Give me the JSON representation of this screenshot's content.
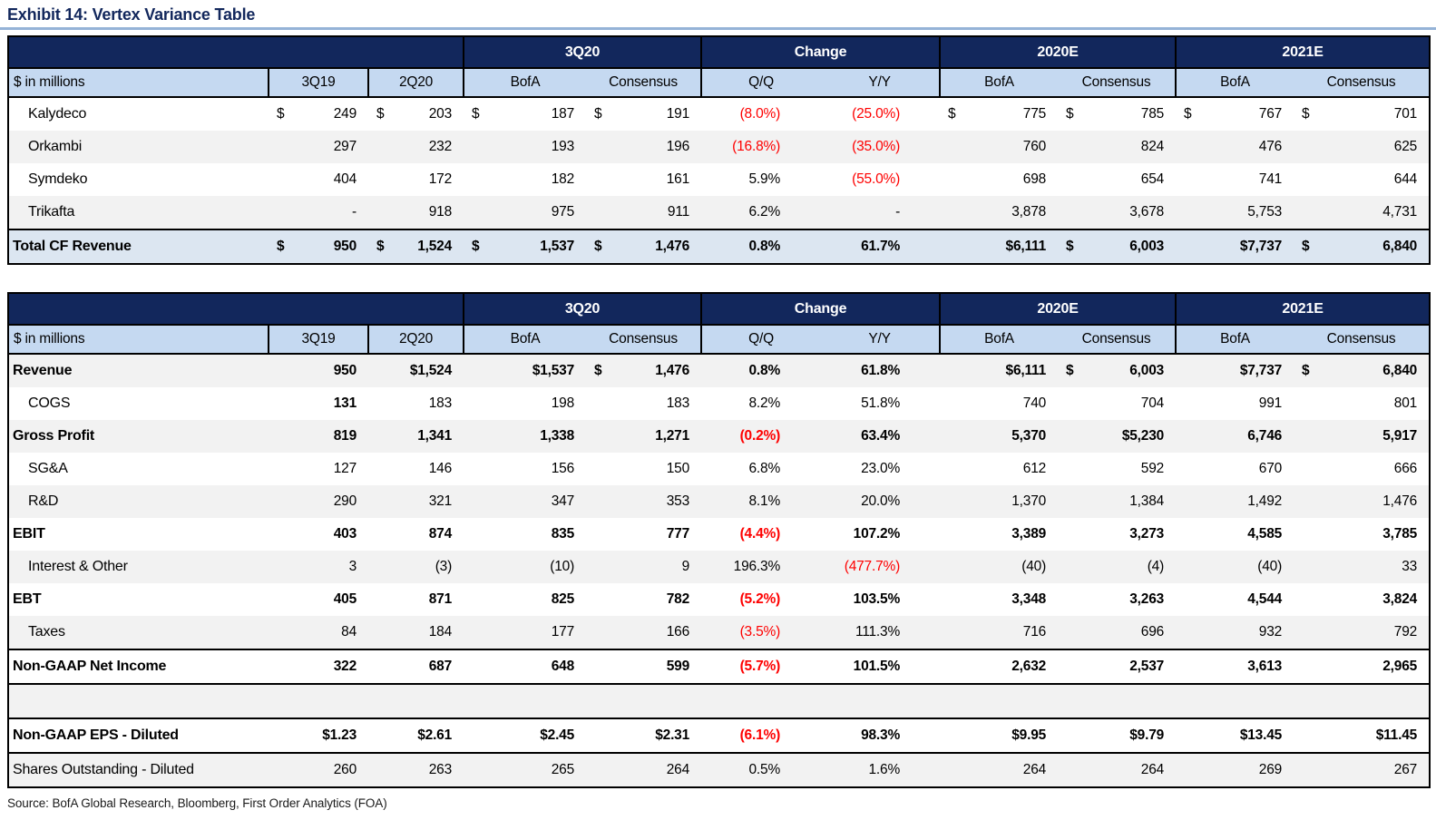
{
  "page": {
    "title": "Exhibit 14: Vertex Variance Table",
    "source": "Source: BofA Global Research, Bloomberg, First Order Analytics (FOA)"
  },
  "colors": {
    "navy_header": "#12275c",
    "subheader_blue": "#c5d9f1",
    "total_row_blue": "#dce6f1",
    "stripe_gray": "#f2f2f2",
    "negative_red": "#fe0000",
    "title_rule_blue": "#95b3d7"
  },
  "columns": {
    "groups": [
      "3Q20",
      "Change",
      "2020E",
      "2021E"
    ],
    "sub": [
      "$ in millions",
      "3Q19",
      "2Q20",
      "BofA",
      "Consensus",
      "Q/Q",
      "Y/Y",
      "BofA",
      "Consensus",
      "BofA",
      "Consensus"
    ]
  },
  "table1": {
    "rows": [
      {
        "label": "Kalydeco",
        "indent": true,
        "cells": [
          {
            "d": "$",
            "v": "249"
          },
          {
            "d": "$",
            "v": "203"
          },
          {
            "d": "$",
            "v": "187"
          },
          {
            "d": "$",
            "v": "191"
          },
          {
            "v": "(8.0%)",
            "red": true
          },
          {
            "v": "(25.0%)",
            "red": true
          },
          {
            "d": "$",
            "v": "775"
          },
          {
            "d": "$",
            "v": "785"
          },
          {
            "d": "$",
            "v": "767"
          },
          {
            "d": "$",
            "v": "701"
          }
        ]
      },
      {
        "label": "Orkambi",
        "indent": true,
        "cells": [
          {
            "v": "297"
          },
          {
            "v": "232"
          },
          {
            "v": "193"
          },
          {
            "v": "196"
          },
          {
            "v": "(16.8%)",
            "red": true
          },
          {
            "v": "(35.0%)",
            "red": true
          },
          {
            "v": "760"
          },
          {
            "v": "824"
          },
          {
            "v": "476"
          },
          {
            "v": "625"
          }
        ]
      },
      {
        "label": "Symdeko",
        "indent": true,
        "cells": [
          {
            "v": "404"
          },
          {
            "v": "172"
          },
          {
            "v": "182"
          },
          {
            "v": "161"
          },
          {
            "v": "5.9%"
          },
          {
            "v": "(55.0%)",
            "red": true
          },
          {
            "v": "698"
          },
          {
            "v": "654"
          },
          {
            "v": "741"
          },
          {
            "v": "644"
          }
        ]
      },
      {
        "label": "Trikafta",
        "indent": true,
        "cells": [
          {
            "v": "-"
          },
          {
            "v": "918"
          },
          {
            "v": "975"
          },
          {
            "v": "911"
          },
          {
            "v": "6.2%"
          },
          {
            "v": "-"
          },
          {
            "v": "3,878"
          },
          {
            "v": "3,678"
          },
          {
            "v": "5,753"
          },
          {
            "v": "4,731"
          }
        ]
      },
      {
        "label": "Total CF Revenue",
        "bold": true,
        "total": true,
        "rule_above": true,
        "cells": [
          {
            "d": "$",
            "v": "950"
          },
          {
            "d": "$",
            "v": "1,524"
          },
          {
            "d": "$",
            "v": "1,537"
          },
          {
            "d": "$",
            "v": "1,476"
          },
          {
            "v": "0.8%"
          },
          {
            "v": "61.7%"
          },
          {
            "v": "$6,111"
          },
          {
            "d": "$",
            "v": "6,003"
          },
          {
            "v": "$7,737"
          },
          {
            "d": "$",
            "v": "6,840"
          }
        ]
      }
    ]
  },
  "table2": {
    "rows": [
      {
        "label": "Revenue",
        "bold": true,
        "cells": [
          {
            "v": "950"
          },
          {
            "v": "$1,524"
          },
          {
            "v": "$1,537"
          },
          {
            "d": "$",
            "v": "1,476"
          },
          {
            "v": "0.8%"
          },
          {
            "v": "61.8%"
          },
          {
            "v": "$6,111"
          },
          {
            "d": "$",
            "v": "6,003"
          },
          {
            "v": "$7,737"
          },
          {
            "d": "$",
            "v": "6,840"
          }
        ]
      },
      {
        "label": "COGS",
        "indent": true,
        "cells": [
          {
            "v": "131",
            "b": true
          },
          {
            "v": "183"
          },
          {
            "v": "198"
          },
          {
            "v": "183"
          },
          {
            "v": "8.2%"
          },
          {
            "v": "51.8%"
          },
          {
            "v": "740"
          },
          {
            "v": "704"
          },
          {
            "v": "991"
          },
          {
            "v": "801"
          }
        ]
      },
      {
        "label": "Gross Profit",
        "bold": true,
        "cells": [
          {
            "v": "819"
          },
          {
            "v": "1,341"
          },
          {
            "v": "1,338"
          },
          {
            "v": "1,271"
          },
          {
            "v": "(0.2%)",
            "red": true
          },
          {
            "v": "63.4%"
          },
          {
            "v": "5,370"
          },
          {
            "v": "$5,230"
          },
          {
            "v": "6,746"
          },
          {
            "v": "5,917"
          }
        ]
      },
      {
        "label": "SG&A",
        "indent": true,
        "cells": [
          {
            "v": "127"
          },
          {
            "v": "146"
          },
          {
            "v": "156"
          },
          {
            "v": "150"
          },
          {
            "v": "6.8%"
          },
          {
            "v": "23.0%"
          },
          {
            "v": "612"
          },
          {
            "v": "592"
          },
          {
            "v": "670"
          },
          {
            "v": "666"
          }
        ]
      },
      {
        "label": "R&D",
        "indent": true,
        "cells": [
          {
            "v": "290"
          },
          {
            "v": "321"
          },
          {
            "v": "347"
          },
          {
            "v": "353"
          },
          {
            "v": "8.1%"
          },
          {
            "v": "20.0%"
          },
          {
            "v": "1,370"
          },
          {
            "v": "1,384"
          },
          {
            "v": "1,492"
          },
          {
            "v": "1,476"
          }
        ]
      },
      {
        "label": "EBIT",
        "bold": true,
        "cells": [
          {
            "v": "403"
          },
          {
            "v": "874"
          },
          {
            "v": "835"
          },
          {
            "v": "777"
          },
          {
            "v": "(4.4%)",
            "red": true
          },
          {
            "v": "107.2%"
          },
          {
            "v": "3,389"
          },
          {
            "v": "3,273"
          },
          {
            "v": "4,585"
          },
          {
            "v": "3,785"
          }
        ]
      },
      {
        "label": "Interest & Other",
        "indent": true,
        "cells": [
          {
            "v": "3"
          },
          {
            "v": "(3)"
          },
          {
            "v": "(10)"
          },
          {
            "v": "9"
          },
          {
            "v": "196.3%"
          },
          {
            "v": "(477.7%)",
            "red": true
          },
          {
            "v": "(40)"
          },
          {
            "v": "(4)"
          },
          {
            "v": "(40)"
          },
          {
            "v": "33"
          }
        ]
      },
      {
        "label": "EBT",
        "bold": true,
        "cells": [
          {
            "v": "405"
          },
          {
            "v": "871"
          },
          {
            "v": "825"
          },
          {
            "v": "782"
          },
          {
            "v": "(5.2%)",
            "red": true
          },
          {
            "v": "103.5%"
          },
          {
            "v": "3,348"
          },
          {
            "v": "3,263"
          },
          {
            "v": "4,544"
          },
          {
            "v": "3,824"
          }
        ]
      },
      {
        "label": "Taxes",
        "indent": true,
        "cells": [
          {
            "v": "84"
          },
          {
            "v": "184"
          },
          {
            "v": "177"
          },
          {
            "v": "166"
          },
          {
            "v": "(3.5%)",
            "red": true
          },
          {
            "v": "111.3%"
          },
          {
            "v": "716"
          },
          {
            "v": "696"
          },
          {
            "v": "932"
          },
          {
            "v": "792"
          }
        ]
      },
      {
        "label": "Non-GAAP Net Income",
        "bold": true,
        "rule_above": true,
        "rule_below": true,
        "cells": [
          {
            "v": "322"
          },
          {
            "v": "687"
          },
          {
            "v": "648"
          },
          {
            "v": "599"
          },
          {
            "v": "(5.7%)",
            "red": true
          },
          {
            "v": "101.5%"
          },
          {
            "v": "2,632"
          },
          {
            "v": "2,537"
          },
          {
            "v": "3,613"
          },
          {
            "v": "2,965"
          }
        ]
      },
      {
        "label": "",
        "blank": true,
        "cells": []
      },
      {
        "label": "Non-GAAP EPS - Diluted",
        "bold": true,
        "rule_above": true,
        "rule_below": true,
        "cells": [
          {
            "v": "$1.23"
          },
          {
            "v": "$2.61"
          },
          {
            "v": "$2.45"
          },
          {
            "v": "$2.31"
          },
          {
            "v": "(6.1%)",
            "red": true
          },
          {
            "v": "98.3%"
          },
          {
            "v": "$9.95"
          },
          {
            "v": "$9.79"
          },
          {
            "v": "$13.45"
          },
          {
            "v": "$11.45"
          }
        ]
      },
      {
        "label": "Shares Outstanding - Diluted",
        "cells": [
          {
            "v": "260"
          },
          {
            "v": "263"
          },
          {
            "v": "265"
          },
          {
            "v": "264"
          },
          {
            "v": "0.5%"
          },
          {
            "v": "1.6%"
          },
          {
            "v": "264"
          },
          {
            "v": "264"
          },
          {
            "v": "269"
          },
          {
            "v": "267"
          }
        ]
      }
    ]
  }
}
